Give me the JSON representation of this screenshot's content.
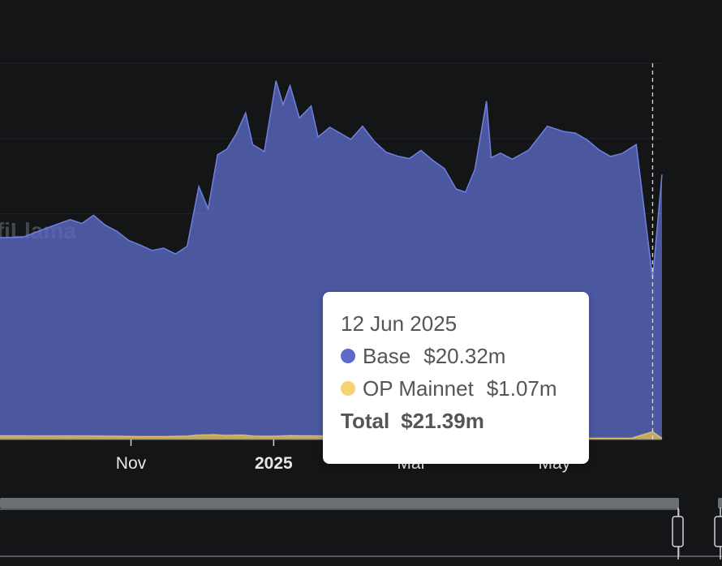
{
  "watermark": "DefiLlama",
  "chart_data": {
    "type": "area",
    "stacked": true,
    "x_start": "2024-09-06",
    "x_end": "2025-06-16",
    "x_ticks": [
      {
        "date": "2024-11-01",
        "label": "Nov",
        "bold": false
      },
      {
        "date": "2025-01-01",
        "label": "2025",
        "bold": true
      },
      {
        "date": "2025-03-01",
        "label": "Mar",
        "bold": false
      },
      {
        "date": "2025-05-01",
        "label": "May",
        "bold": false
      }
    ],
    "ylim": [
      0,
      50
    ],
    "y_grid": [
      10,
      20,
      30,
      40,
      50
    ],
    "y_axis_labels_visible": false,
    "grid": true,
    "series": [
      {
        "name": "OP Mainnet",
        "color": "#f5d372",
        "points": [
          [
            "2024-09-06",
            0.52
          ],
          [
            "2024-09-16",
            0.51
          ],
          [
            "2024-09-26",
            0.5
          ],
          [
            "2024-10-06",
            0.52
          ],
          [
            "2024-10-16",
            0.5
          ],
          [
            "2024-10-26",
            0.47
          ],
          [
            "2024-11-05",
            0.43
          ],
          [
            "2024-11-15",
            0.43
          ],
          [
            "2024-11-25",
            0.48
          ],
          [
            "2024-11-29",
            0.6
          ],
          [
            "2024-12-03",
            0.65
          ],
          [
            "2024-12-07",
            0.68
          ],
          [
            "2024-12-11",
            0.58
          ],
          [
            "2024-12-15",
            0.6
          ],
          [
            "2024-12-19",
            0.62
          ],
          [
            "2024-12-23",
            0.5
          ],
          [
            "2024-12-28",
            0.46
          ],
          [
            "2025-01-03",
            0.48
          ],
          [
            "2025-01-08",
            0.55
          ],
          [
            "2025-01-14",
            0.52
          ],
          [
            "2025-01-24",
            0.5
          ],
          [
            "2025-02-03",
            0.48
          ],
          [
            "2025-02-13",
            0.42
          ],
          [
            "2025-02-23",
            0.35
          ],
          [
            "2025-03-05",
            0.33
          ],
          [
            "2025-03-15",
            0.3
          ],
          [
            "2025-04-04",
            0.26
          ],
          [
            "2025-04-24",
            0.24
          ],
          [
            "2025-05-14",
            0.22
          ],
          [
            "2025-06-03",
            0.21
          ],
          [
            "2025-06-12",
            1.07
          ],
          [
            "2025-06-16",
            0.2
          ]
        ]
      },
      {
        "name": "Base",
        "color": "#5b6bc7",
        "points": [
          [
            "2024-09-06",
            26.3
          ],
          [
            "2024-09-16",
            26.4
          ],
          [
            "2024-09-26",
            27.6
          ],
          [
            "2024-10-06",
            28.7
          ],
          [
            "2024-10-11",
            28.2
          ],
          [
            "2024-10-16",
            29.3
          ],
          [
            "2024-10-21",
            28.0
          ],
          [
            "2024-10-26",
            27.2
          ],
          [
            "2024-10-31",
            26.0
          ],
          [
            "2024-11-05",
            25.4
          ],
          [
            "2024-11-10",
            24.7
          ],
          [
            "2024-11-15",
            25.0
          ],
          [
            "2024-11-20",
            24.2
          ],
          [
            "2024-11-25",
            25.2
          ],
          [
            "2024-11-30",
            33.0
          ],
          [
            "2024-12-04",
            30.0
          ],
          [
            "2024-12-08",
            37.2
          ],
          [
            "2024-12-12",
            38.0
          ],
          [
            "2024-12-16",
            40.0
          ],
          [
            "2024-12-20",
            42.8
          ],
          [
            "2024-12-23",
            38.7
          ],
          [
            "2024-12-28",
            37.8
          ],
          [
            "2025-01-02",
            47.2
          ],
          [
            "2025-01-05",
            44.0
          ],
          [
            "2025-01-08",
            46.5
          ],
          [
            "2025-01-12",
            42.2
          ],
          [
            "2025-01-17",
            43.8
          ],
          [
            "2025-01-20",
            39.7
          ],
          [
            "2025-01-25",
            41.0
          ],
          [
            "2025-01-29",
            40.3
          ],
          [
            "2025-02-03",
            39.4
          ],
          [
            "2025-02-08",
            41.2
          ],
          [
            "2025-02-13",
            39.2
          ],
          [
            "2025-02-18",
            37.8
          ],
          [
            "2025-02-23",
            37.3
          ],
          [
            "2025-02-28",
            37.0
          ],
          [
            "2025-03-05",
            38.1
          ],
          [
            "2025-03-10",
            36.8
          ],
          [
            "2025-03-15",
            35.7
          ],
          [
            "2025-03-20",
            33.0
          ],
          [
            "2025-03-24",
            32.6
          ],
          [
            "2025-03-28",
            35.6
          ],
          [
            "2025-04-02",
            44.7
          ],
          [
            "2025-04-04",
            37.2
          ],
          [
            "2025-04-08",
            37.8
          ],
          [
            "2025-04-13",
            37.0
          ],
          [
            "2025-04-20",
            38.2
          ],
          [
            "2025-04-28",
            41.4
          ],
          [
            "2025-05-05",
            40.7
          ],
          [
            "2025-05-10",
            40.5
          ],
          [
            "2025-05-15",
            39.6
          ],
          [
            "2025-05-20",
            38.3
          ],
          [
            "2025-05-25",
            37.4
          ],
          [
            "2025-05-30",
            37.8
          ],
          [
            "2025-06-05",
            38.8
          ],
          [
            "2025-06-12",
            20.32
          ],
          [
            "2025-06-16",
            35.0
          ]
        ]
      }
    ],
    "crosshair_date": "2025-06-12"
  },
  "tooltip": {
    "date": "12 Jun 2025",
    "rows": [
      {
        "name": "Base",
        "value": "$20.32m",
        "color": "#5b6bc7"
      },
      {
        "name": "OP Mainnet",
        "value": "$1.07m",
        "color": "#f5d372"
      }
    ],
    "total_label": "Total",
    "total_value": "$21.39m"
  }
}
